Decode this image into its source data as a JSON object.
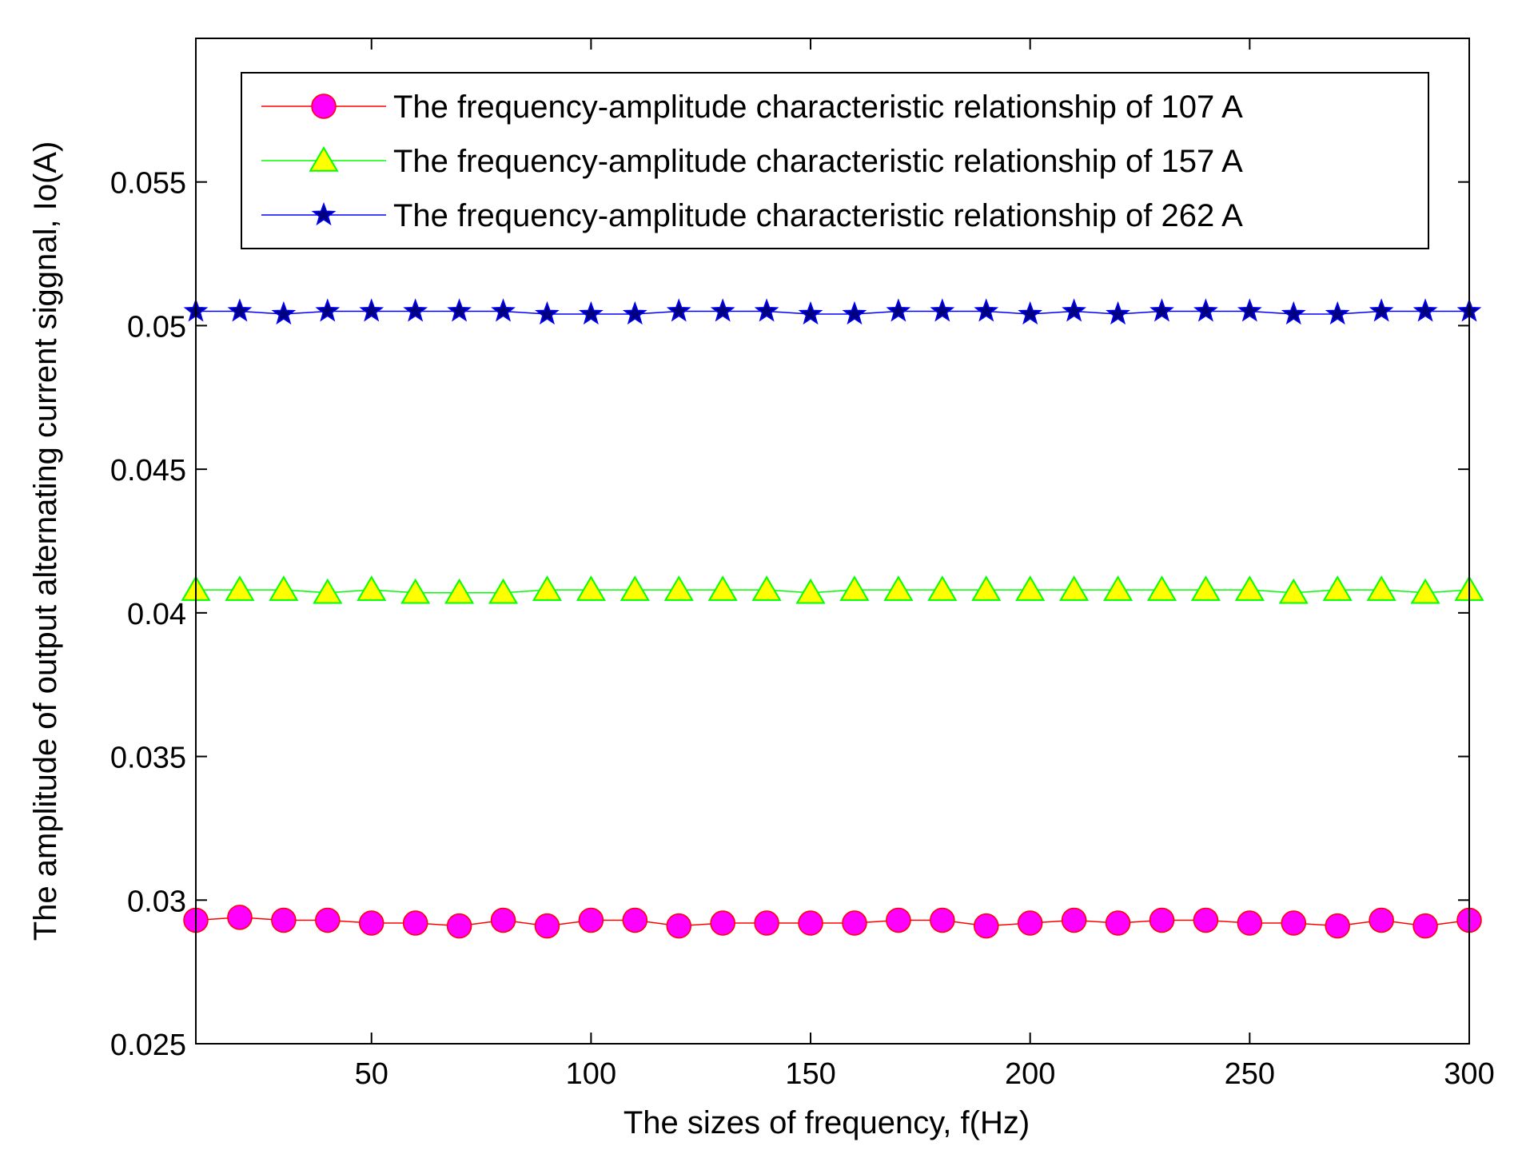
{
  "chart_data": {
    "type": "line",
    "title": "",
    "xlabel": "The sizes of frequency,  f(Hz)",
    "ylabel": "The amplitude of output alternating current siggnal,  Io(A)",
    "xlim": [
      10,
      300
    ],
    "ylim": [
      0.025,
      0.06
    ],
    "x_ticks": [
      50,
      100,
      150,
      200,
      250,
      300
    ],
    "x_tick_labels": [
      "50",
      "100",
      "150",
      "200",
      "250",
      "300"
    ],
    "y_ticks": [
      0.025,
      0.03,
      0.035,
      0.04,
      0.045,
      0.05,
      0.055
    ],
    "y_tick_labels": [
      "0.025",
      "0.03",
      "0.035",
      "0.04",
      "0.045",
      "0.05",
      "0.055"
    ],
    "grid": false,
    "legend_position": "top",
    "x": [
      10,
      20,
      30,
      40,
      50,
      60,
      70,
      80,
      90,
      100,
      110,
      120,
      130,
      140,
      150,
      160,
      170,
      180,
      190,
      200,
      210,
      220,
      230,
      240,
      250,
      260,
      270,
      280,
      290,
      300
    ],
    "series": [
      {
        "name": "The frequency-amplitude characteristic relationship of 107 A",
        "color": "#ff0000",
        "marker": "circle",
        "marker_fill": "#ff00ff",
        "values": [
          0.0293,
          0.0294,
          0.0293,
          0.0293,
          0.0292,
          0.0292,
          0.0291,
          0.0293,
          0.0291,
          0.0293,
          0.0293,
          0.0291,
          0.0292,
          0.0292,
          0.0292,
          0.0292,
          0.0293,
          0.0293,
          0.0291,
          0.0292,
          0.0293,
          0.0292,
          0.0293,
          0.0293,
          0.0292,
          0.0292,
          0.0291,
          0.0293,
          0.0291,
          0.0293
        ]
      },
      {
        "name": "The frequency-amplitude characteristic relationship of 157 A",
        "color": "#00ff00",
        "marker": "triangle",
        "marker_fill": "#ffff00",
        "values": [
          0.0408,
          0.0408,
          0.0408,
          0.0407,
          0.0408,
          0.0407,
          0.0407,
          0.0407,
          0.0408,
          0.0408,
          0.0408,
          0.0408,
          0.0408,
          0.0408,
          0.0407,
          0.0408,
          0.0408,
          0.0408,
          0.0408,
          0.0408,
          0.0408,
          0.0408,
          0.0408,
          0.0408,
          0.0408,
          0.0407,
          0.0408,
          0.0408,
          0.0407,
          0.0408
        ]
      },
      {
        "name": "The frequency-amplitude characteristic relationship of 262 A",
        "color": "#0000ff",
        "marker": "star",
        "marker_fill": "#000080",
        "values": [
          0.0505,
          0.0505,
          0.0504,
          0.0505,
          0.0505,
          0.0505,
          0.0505,
          0.0505,
          0.0504,
          0.0504,
          0.0504,
          0.0505,
          0.0505,
          0.0505,
          0.0504,
          0.0504,
          0.0505,
          0.0505,
          0.0505,
          0.0504,
          0.0505,
          0.0504,
          0.0505,
          0.0505,
          0.0505,
          0.0504,
          0.0504,
          0.0505,
          0.0505,
          0.0505
        ]
      }
    ]
  }
}
